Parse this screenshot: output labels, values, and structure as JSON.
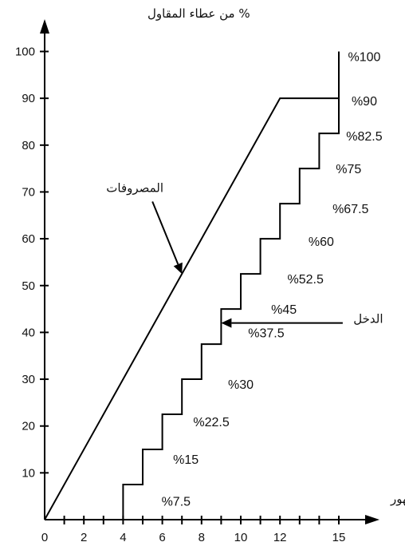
{
  "chart_data": {
    "type": "line",
    "ylabel": "% من عطاء المقاول",
    "xlabel": "الشهور",
    "origin_label": "0",
    "xlim": [
      0,
      16
    ],
    "ylim": [
      0,
      105
    ],
    "x_ticks": [
      2,
      4,
      6,
      8,
      10,
      12,
      15
    ],
    "x_minor_ticks": [
      1,
      3,
      5,
      7,
      9,
      11,
      13,
      14
    ],
    "y_ticks": [
      10,
      20,
      30,
      40,
      50,
      60,
      70,
      80,
      90,
      100
    ],
    "grid": false,
    "series": [
      {
        "name": "المصروفات",
        "x": [
          0,
          12,
          15
        ],
        "y": [
          0,
          90,
          90
        ]
      },
      {
        "name": "الدخل",
        "step": true,
        "x": [
          4,
          4,
          5,
          5,
          6,
          6,
          7,
          7,
          8,
          8,
          9,
          9,
          10,
          10,
          11,
          11,
          12,
          12,
          13,
          13,
          14,
          14,
          15,
          15
        ],
        "y": [
          0,
          7.5,
          7.5,
          15,
          15,
          22.5,
          22.5,
          30,
          30,
          37.5,
          37.5,
          45,
          45,
          52.5,
          52.5,
          60,
          60,
          67.5,
          67.5,
          75,
          75,
          82.5,
          82.5,
          100
        ]
      }
    ],
    "annotations": [
      {
        "text": "%7.5",
        "x": 6.7,
        "y": 4
      },
      {
        "text": "%15",
        "x": 7.2,
        "y": 13
      },
      {
        "text": "%22.5",
        "x": 8.5,
        "y": 21
      },
      {
        "text": "%30",
        "x": 10,
        "y": 29
      },
      {
        "text": "%37.5",
        "x": 11.3,
        "y": 40
      },
      {
        "text": "%45",
        "x": 12.2,
        "y": 45
      },
      {
        "text": "%52.5",
        "x": 13.3,
        "y": 51.5
      },
      {
        "text": "%60",
        "x": 14.1,
        "y": 59.5
      },
      {
        "text": "%67.5",
        "x": 15.6,
        "y": 66.5
      },
      {
        "text": "%75",
        "x": 15.5,
        "y": 75
      },
      {
        "text": "%82.5",
        "x": 16.3,
        "y": 82
      },
      {
        "text": "%90",
        "x": 16.3,
        "y": 89.5
      },
      {
        "text": "%100",
        "x": 16.3,
        "y": 99
      }
    ],
    "pointer_labels": [
      {
        "text": "المصروفات",
        "x": 4.6,
        "y": 70,
        "target_x": 7,
        "target_y": 52.5
      },
      {
        "text": "الدخل",
        "x": 16.5,
        "y": 42,
        "target_x": 9,
        "target_y": 42
      }
    ]
  }
}
